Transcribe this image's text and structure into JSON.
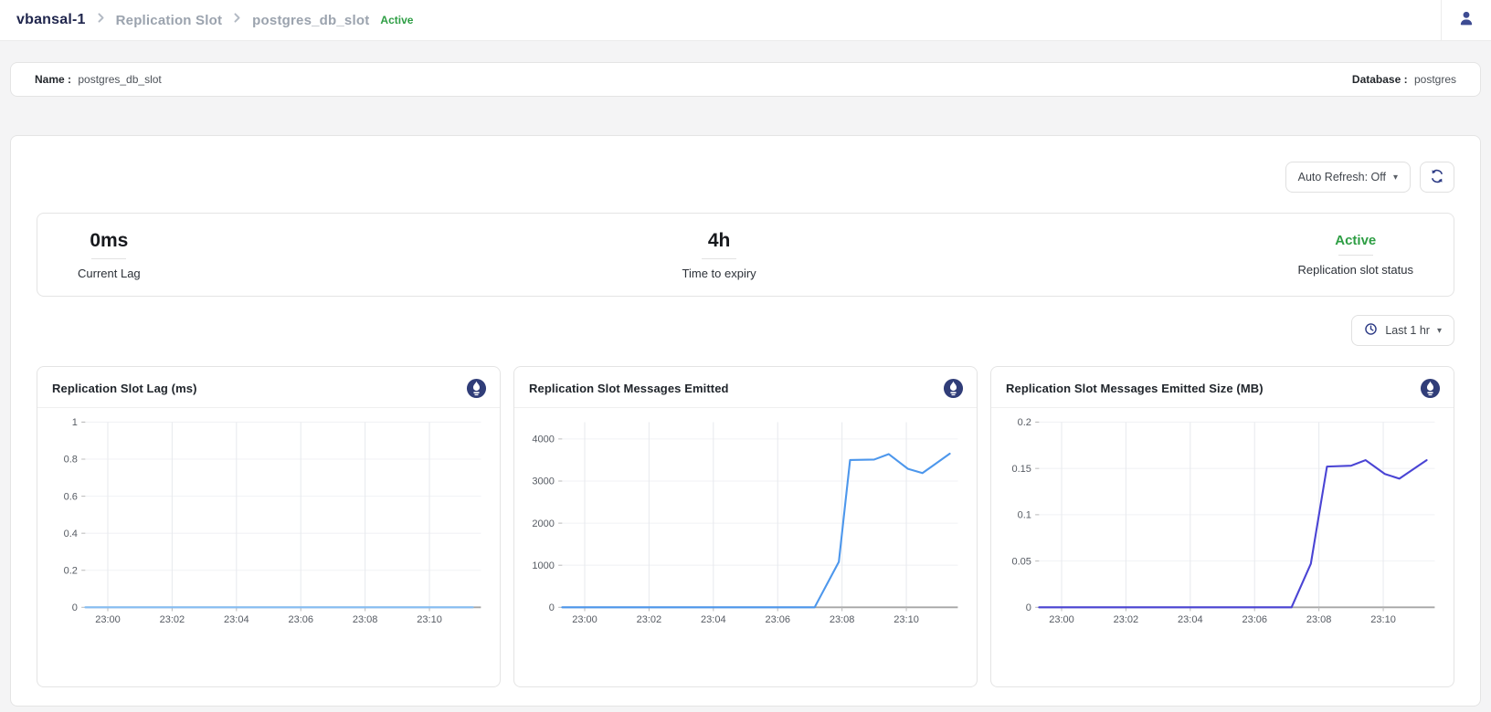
{
  "breadcrumb": {
    "cluster": "vbansal-1",
    "section": "Replication Slot",
    "slot": "postgres_db_slot",
    "status": "Active"
  },
  "info_bar": {
    "name_label": "Name :",
    "name_value": "postgres_db_slot",
    "database_label": "Database :",
    "database_value": "postgres"
  },
  "controls": {
    "auto_refresh_label": "Auto Refresh: Off",
    "time_range_label": "Last 1 hr"
  },
  "icons": {
    "caret": "▾",
    "user": "user-icon",
    "refresh": "refresh-icon",
    "clock": "clock-icon",
    "prometheus": "prometheus-icon"
  },
  "colors": {
    "brand_navy": "#20264d",
    "icon_navy": "#323f85",
    "status_green": "#2e9e44",
    "axis_gray": "#a6a6a6"
  },
  "stats": [
    {
      "value": "0ms",
      "label": "Current Lag"
    },
    {
      "value": "4h",
      "label": "Time to expiry"
    },
    {
      "value": "Active",
      "label": "Replication slot status"
    }
  ],
  "chart_data": [
    {
      "type": "line",
      "title": "Replication Slot Lag (ms)",
      "x_range": [
        -0.7,
        11.6
      ],
      "x_ticks": [
        [
          0,
          "23:00"
        ],
        [
          2,
          "23:02"
        ],
        [
          4,
          "23:04"
        ],
        [
          6,
          "23:06"
        ],
        [
          8,
          "23:08"
        ],
        [
          10,
          "23:10"
        ]
      ],
      "y_range": [
        0,
        1
      ],
      "y_ticks": [
        0,
        0.2,
        0.4,
        0.6,
        0.8,
        1
      ],
      "line_color": "#85bdf3",
      "points": [
        [
          -0.7,
          0
        ],
        [
          11.35,
          0
        ]
      ]
    },
    {
      "type": "line",
      "title": "Replication Slot Messages Emitted",
      "x_range": [
        -0.7,
        11.6
      ],
      "x_ticks": [
        [
          0,
          "23:00"
        ],
        [
          2,
          "23:02"
        ],
        [
          4,
          "23:04"
        ],
        [
          6,
          "23:06"
        ],
        [
          8,
          "23:08"
        ],
        [
          10,
          "23:10"
        ]
      ],
      "y_range": [
        0,
        4400
      ],
      "y_ticks": [
        0,
        1000,
        2000,
        3000,
        4000
      ],
      "line_color": "#4d97ec",
      "points": [
        [
          -0.7,
          0
        ],
        [
          7.15,
          0
        ],
        [
          7.9,
          1080
        ],
        [
          8.25,
          3500
        ],
        [
          9.0,
          3510
        ],
        [
          9.45,
          3640
        ],
        [
          10.05,
          3290
        ],
        [
          10.5,
          3190
        ],
        [
          11.35,
          3650
        ]
      ]
    },
    {
      "type": "line",
      "title": "Replication Slot Messages Emitted Size (MB)",
      "x_range": [
        -0.7,
        11.6
      ],
      "x_ticks": [
        [
          0,
          "23:00"
        ],
        [
          2,
          "23:02"
        ],
        [
          4,
          "23:04"
        ],
        [
          6,
          "23:06"
        ],
        [
          8,
          "23:08"
        ],
        [
          10,
          "23:10"
        ]
      ],
      "y_range": [
        0,
        0.2
      ],
      "y_ticks": [
        0,
        0.05,
        0.1,
        0.15,
        0.2
      ],
      "line_color": "#4a44d4",
      "points": [
        [
          -0.7,
          0
        ],
        [
          7.15,
          0
        ],
        [
          7.75,
          0.047
        ],
        [
          8.25,
          0.152
        ],
        [
          9.0,
          0.153
        ],
        [
          9.45,
          0.159
        ],
        [
          10.05,
          0.144
        ],
        [
          10.5,
          0.139
        ],
        [
          11.35,
          0.159
        ]
      ]
    }
  ]
}
